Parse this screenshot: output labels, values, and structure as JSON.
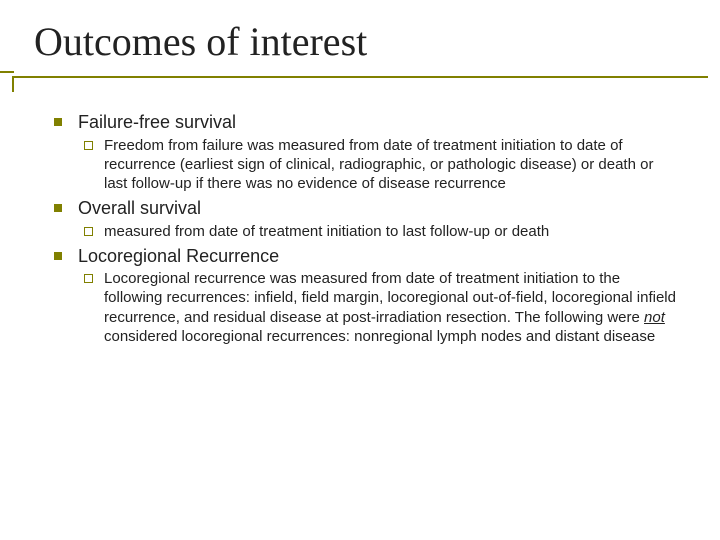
{
  "slide": {
    "title": "Outcomes of interest",
    "colors": {
      "rule": "#808000",
      "text": "#222222",
      "background": "#ffffff",
      "bullet_fill": "#808000"
    },
    "typography": {
      "title_font": "Times New Roman",
      "title_fontsize_pt": 30,
      "body_font": "Arial",
      "l1_fontsize_pt": 14,
      "l2_fontsize_pt": 11
    },
    "items": [
      {
        "label": "Failure-free survival",
        "sub": [
          {
            "text": "Freedom from failure was measured from date of treatment initiation to date of recurrence (earliest sign of clinical, radiographic, or pathologic disease) or death or last follow-up if there was no evidence of disease recurrence"
          }
        ]
      },
      {
        "label": "Overall survival",
        "sub": [
          {
            "text": " measured from date of treatment initiation to last follow-up or death"
          }
        ]
      },
      {
        "label": "Locoregional Recurrence",
        "sub": [
          {
            "text_before": "Locoregional recurrence was measured from date of treatment initiation to the following recurrences: infield, field margin, locoregional out-of-field, locoregional infield recurrence, and residual disease at post-irradiation resection.  The following were ",
            "emphasis": "not",
            "text_after": " considered locoregional recurrences:  nonregional lymph nodes and distant disease"
          }
        ]
      }
    ]
  }
}
